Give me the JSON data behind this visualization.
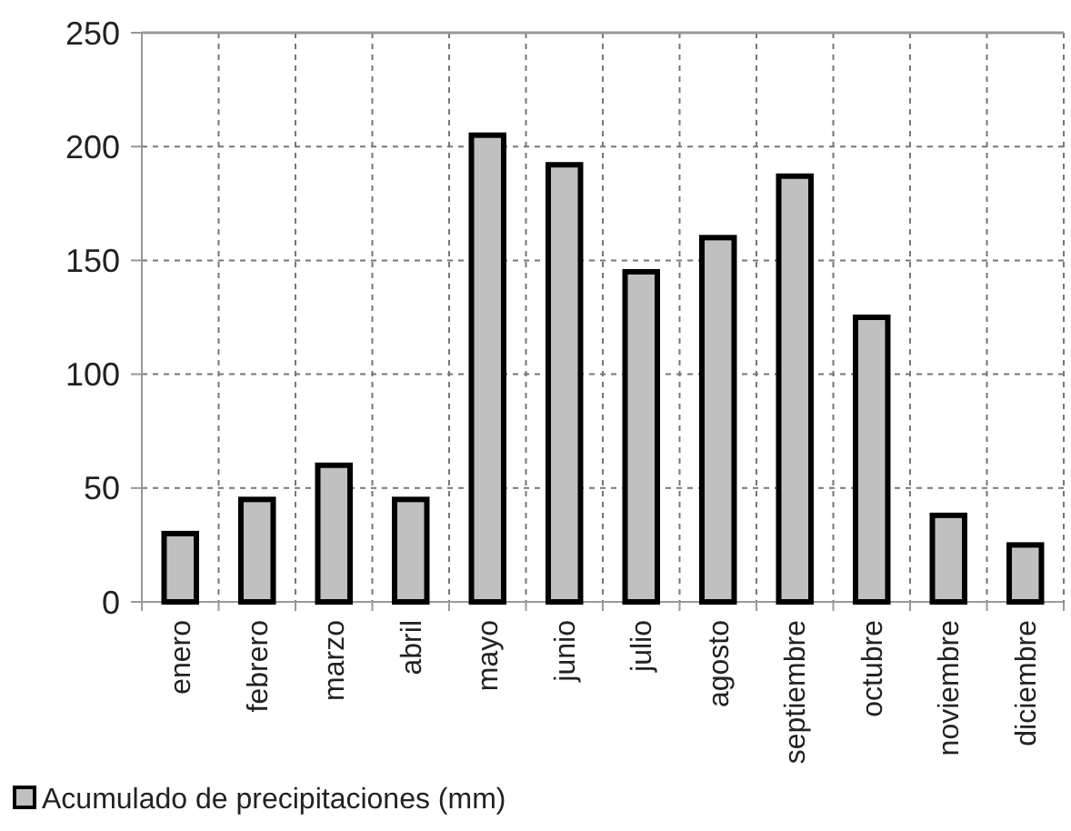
{
  "chart_data": {
    "type": "bar",
    "categories": [
      "enero",
      "febrero",
      "marzo",
      "abril",
      "mayo",
      "junio",
      "julio",
      "agosto",
      "septiembre",
      "octubre",
      "noviembre",
      "diciembre"
    ],
    "series": [
      {
        "name": "Acumulado de precipitaciones (mm)",
        "color": "#c0c0c0",
        "values": [
          30,
          45,
          60,
          45,
          205,
          192,
          145,
          160,
          187,
          125,
          38,
          25
        ]
      }
    ],
    "ylim": [
      0,
      250
    ],
    "yticks": [
      0,
      50,
      100,
      150,
      200,
      250
    ],
    "grid": true,
    "legend": "bottom"
  }
}
